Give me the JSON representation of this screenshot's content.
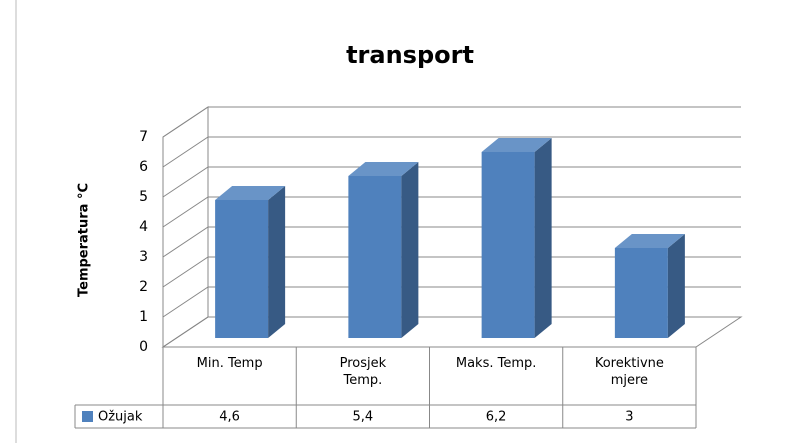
{
  "chart_data": {
    "type": "bar3d",
    "title": "transport",
    "y_label": "Temperatura °C",
    "categories": [
      "Min. Temp",
      "Prosjek Temp.",
      "Maks. Temp.",
      "Korektivne mjere"
    ],
    "series": [
      {
        "name": "Ožujak",
        "color": "#4f81bd",
        "values": [
          4.6,
          5.4,
          6.2,
          3
        ],
        "value_labels": [
          "4,6",
          "5,4",
          "6,2",
          "3"
        ]
      }
    ],
    "ylim": [
      0,
      7
    ],
    "yticks": [
      0,
      1,
      2,
      3,
      4,
      5,
      6,
      7
    ],
    "grid": true,
    "data_table": true
  }
}
